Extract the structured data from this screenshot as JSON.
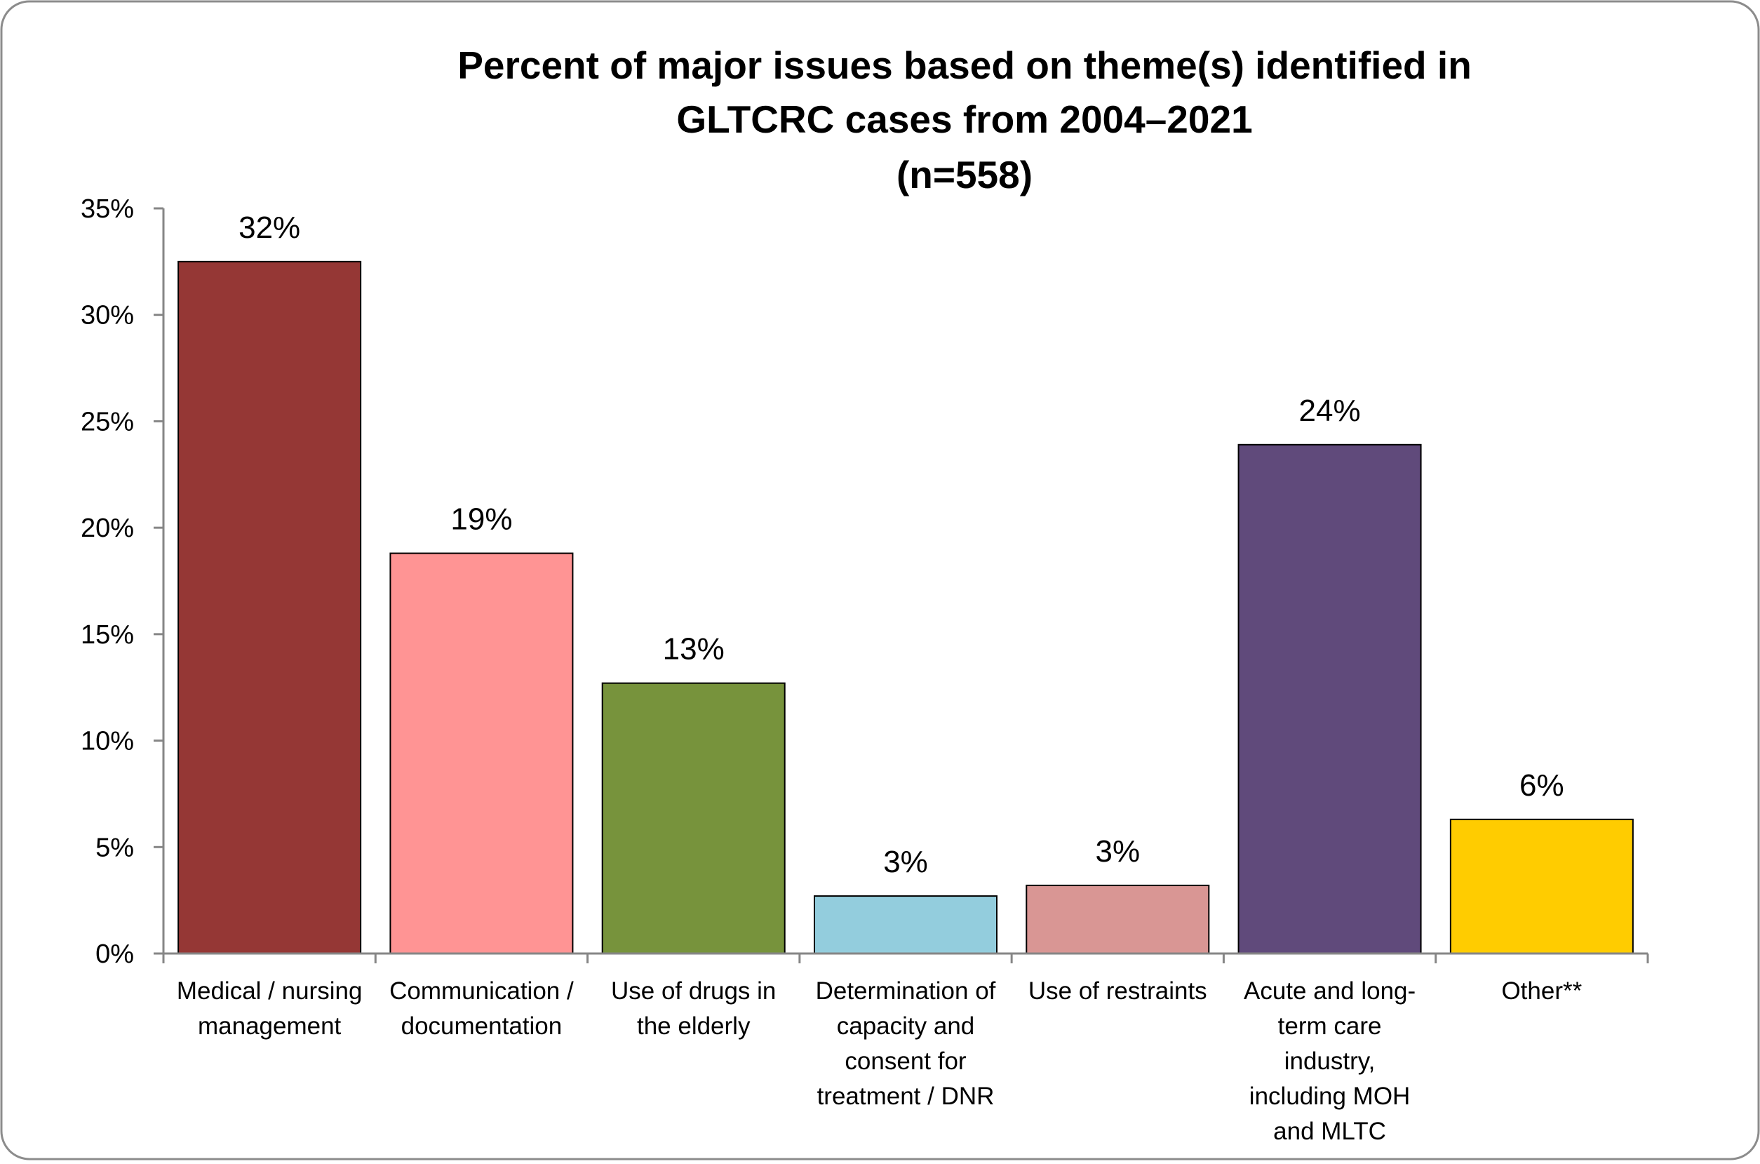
{
  "chart_data": {
    "type": "bar",
    "title_lines": [
      "Percent of major issues based on theme(s) identified in",
      "GLTCRC cases from 2004–2021",
      "(n=558)"
    ],
    "xlabel": "",
    "ylabel": "",
    "ylim": [
      0,
      35
    ],
    "y_tick_values": [
      0,
      5,
      10,
      15,
      20,
      25,
      30,
      35
    ],
    "y_tick_labels": [
      "0%",
      "5%",
      "10%",
      "15%",
      "20%",
      "25%",
      "30%",
      "35%"
    ],
    "categories": [
      [
        "Medical / nursing",
        "management"
      ],
      [
        "Communication /",
        "documentation"
      ],
      [
        "Use of drugs in",
        "the elderly"
      ],
      [
        "Determination of",
        "capacity and",
        "consent for",
        "treatment / DNR"
      ],
      [
        "Use of restraints"
      ],
      [
        "Acute and long-",
        "term care",
        "industry,",
        "including MOH",
        "and MLTC"
      ],
      [
        "Other**"
      ]
    ],
    "values": [
      32.5,
      18.8,
      12.7,
      2.7,
      3.2,
      23.9,
      6.3
    ],
    "data_labels": [
      "32%",
      "19%",
      "13%",
      "3%",
      "3%",
      "24%",
      "6%"
    ],
    "colors": [
      "#953735",
      "#FF9494",
      "#77933C",
      "#93CDDD",
      "#D99694",
      "#604A7B",
      "#FFCC00"
    ],
    "grid": false,
    "legend": "none"
  }
}
